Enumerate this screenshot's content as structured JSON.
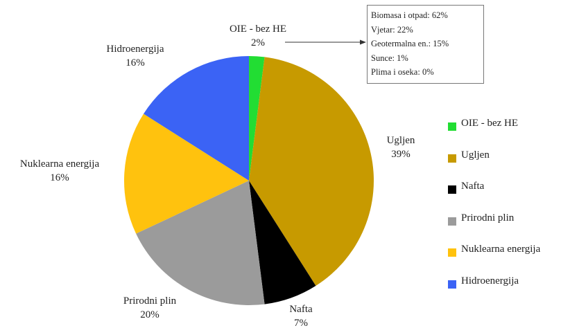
{
  "chart_data": {
    "type": "pie",
    "title": "",
    "categories": [
      "OIE - bez HE",
      "Ugljen",
      "Nafta",
      "Prirodni plin",
      "Nuklearna energija",
      "Hidroenergija"
    ],
    "values": [
      2,
      39,
      7,
      20,
      16,
      16
    ],
    "value_labels": [
      "2%",
      "39%",
      "7%",
      "20%",
      "16%",
      "16%"
    ],
    "colors": [
      "#22dd33",
      "#c79a00",
      "#000000",
      "#9b9b9b",
      "#ffc20e",
      "#3b63f5"
    ],
    "legend_position": "right",
    "breakdown": {
      "items": [
        "Biomasa i otpad: 62%",
        "Vjetar: 22%",
        "Geotermalna en.: 15%",
        "Sunce: 1%",
        "Plima i oseka: 0%"
      ]
    }
  }
}
